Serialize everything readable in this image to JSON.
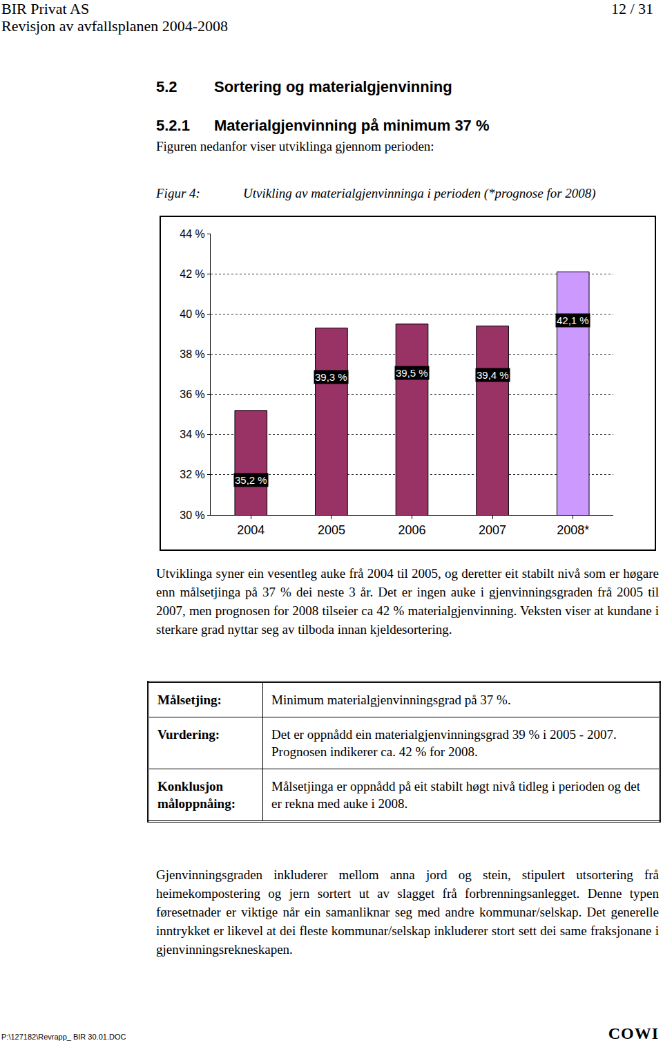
{
  "header": {
    "company": "BIR Privat AS",
    "page": "12 / 31",
    "document": "Revisjon av avfallsplanen 2004-2008"
  },
  "section": {
    "number": "5.2",
    "title": "Sortering og materialgjenvinning"
  },
  "subsection": {
    "number": "5.2.1",
    "title": "Materialgjenvinning på minimum 37 %"
  },
  "intro": "Figuren nedanfor viser utviklinga gjennom perioden:",
  "figure": {
    "label": "Figur 4:",
    "caption": "Utvikling av materialgjenvinninga i perioden (*prognose for 2008)"
  },
  "chart_data": {
    "type": "bar",
    "categories": [
      "2004",
      "2005",
      "2006",
      "2007",
      "2008*"
    ],
    "values": [
      35.2,
      39.3,
      39.5,
      39.4,
      42.1
    ],
    "value_labels": [
      "35,2 %",
      "39,3 %",
      "39,5 %",
      "39,4 %",
      "42,1 %"
    ],
    "data_labels": true,
    "colors": [
      "#993366",
      "#993366",
      "#993366",
      "#993366",
      "#cc99ff"
    ],
    "ylim": [
      30,
      44
    ],
    "yticks": [
      {
        "value": 30,
        "label": "30 %"
      },
      {
        "value": 32,
        "label": "32 %"
      },
      {
        "value": 34,
        "label": "34 %"
      },
      {
        "value": 36,
        "label": "36 %"
      },
      {
        "value": 38,
        "label": "38 %"
      },
      {
        "value": 40,
        "label": "40 %"
      },
      {
        "value": 42,
        "label": "42 %"
      },
      {
        "value": 44,
        "label": "44 %"
      }
    ],
    "grid": true
  },
  "paragraphs": [
    "Utviklinga syner ein vesentleg auke frå 2004 til 2005, og deretter eit stabilt nivå som er høgare enn målsetjinga på 37 % dei neste 3 år. Det er ingen auke i gjenvinningsgraden frå 2005 til 2007, men prognosen for 2008 tilseier ca 42 % materialgjenvinning. Veksten viser at kundane i sterkare grad nyttar seg av tilboda innan kjeldesortering.",
    "Gjenvinningsgraden inkluderer mellom anna jord og stein, stipulert utsortering frå heimekompostering og jern sortert ut av slagget frå forbrenningsanlegget. Denne typen føresetnader er viktige når ein samanliknar seg med andre kommunar/selskap. Det generelle inntrykket er likevel at dei fleste kommunar/selskap inkluderer stort sett dei same fraksjonane i gjenvinningsrekneskapen."
  ],
  "table": {
    "rows": [
      [
        "Målsetjing:",
        "Minimum materialgjenvinningsgrad på 37 %."
      ],
      [
        "Vurdering:",
        "Det er oppnådd ein materialgjenvinningsgrad 39 % i 2005 - 2007. Prognosen indikerer ca. 42 % for 2008."
      ],
      [
        "Konklusjon måloppnåing:",
        "Målsetjinga er oppnådd på eit stabilt høgt nivå tidleg i perioden og det er rekna med auke i 2008."
      ]
    ]
  },
  "footer": {
    "path": "P:\\127182\\Revrapp_ BIR 30.01.DOC",
    "logo": "COWI"
  }
}
